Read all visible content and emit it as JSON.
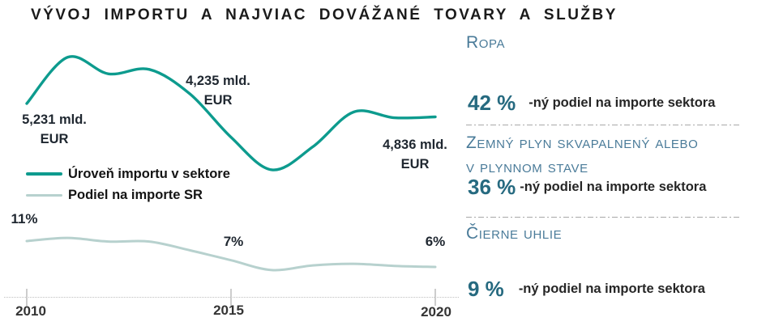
{
  "title": "VÝVOJ IMPORTU A NAJVIAC DOVÁŽANÉ TOVARY A SLUŽBY",
  "chart_data": {
    "type": "line",
    "x": [
      2010,
      2011,
      2012,
      2013,
      2014,
      2015,
      2016,
      2017,
      2018,
      2019,
      2020
    ],
    "x_ticks": [
      "2010",
      "2015",
      "2020"
    ],
    "grid": false,
    "legend_position": "left-middle",
    "series": [
      {
        "name": "Úroveň importu v sektore",
        "unit": "mld. EUR",
        "color": "#0d9b8e",
        "values": [
          5.231,
          6.6,
          6.11,
          6.24,
          5.51,
          4.235,
          3.27,
          3.95,
          4.98,
          4.81,
          4.836
        ],
        "labels": {
          "2010": {
            "text": "5,231 mld.",
            "unit": "EUR"
          },
          "2015": {
            "text": "4,235 mld.",
            "unit": "EUR"
          },
          "2020": {
            "text": "4,836 mld.",
            "unit": "EUR"
          }
        }
      },
      {
        "name": "Podiel na importe SR",
        "unit": "%",
        "color": "#b7d1ce",
        "values": [
          11,
          11.6,
          10.9,
          10.9,
          9.2,
          7.3,
          5.4,
          6.3,
          6.6,
          6.2,
          6
        ],
        "labels": {
          "2010": "11%",
          "2015": "7%",
          "2020": "6%"
        }
      }
    ]
  },
  "right_panel": {
    "items": [
      {
        "heading": "Ropa",
        "value": "42 %",
        "description": "-ný podiel na importe sektora"
      },
      {
        "heading": "Zemný plyn skvapalnený alebo",
        "heading_line2": "v plynnom stave",
        "value": "36 %",
        "description": "-ný podiel na importe sektora"
      },
      {
        "heading": "Čierne uhlie",
        "value": "9 %",
        "description": "-ný podiel na importe sektora"
      }
    ]
  }
}
